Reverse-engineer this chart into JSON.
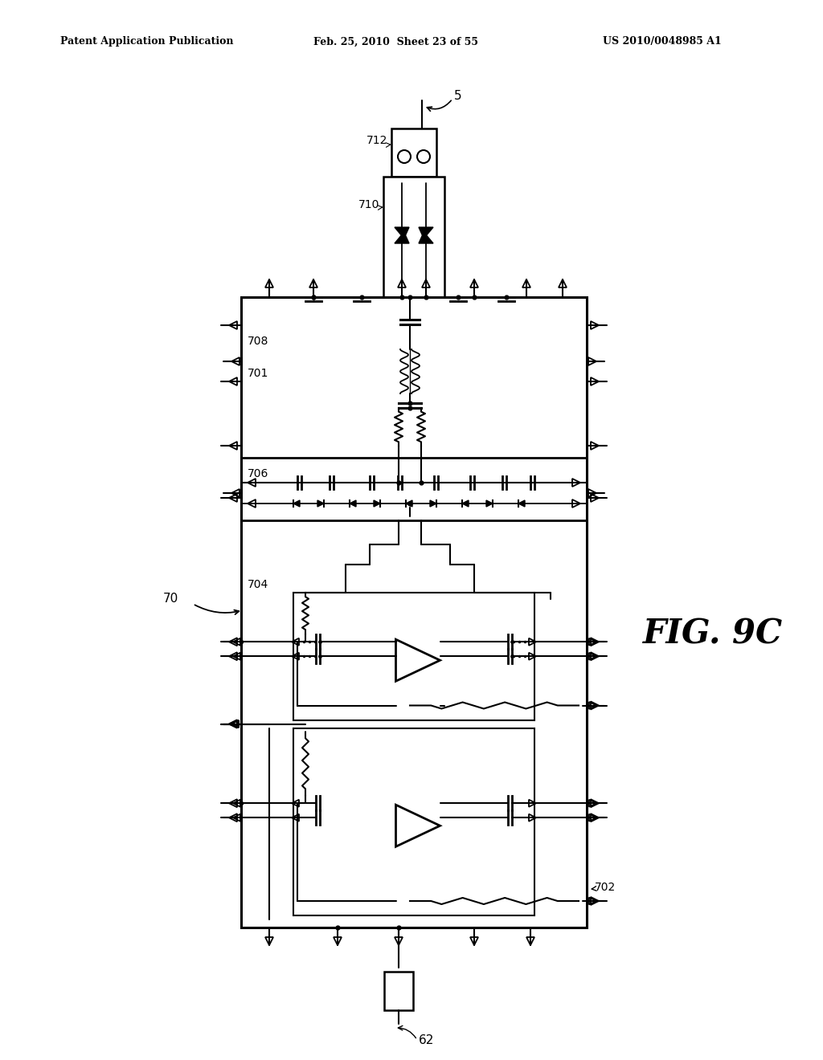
{
  "bg_color": "#ffffff",
  "title_left": "Patent Application Publication",
  "title_mid": "Feb. 25, 2010  Sheet 23 of 55",
  "title_right": "US 2010/0048985 A1",
  "fig_label": "FIG. 9C",
  "label_70": "70",
  "label_5": "5",
  "label_62": "62",
  "label_701": "701",
  "label_702": "702",
  "label_704": "704",
  "label_706": "706",
  "label_708": "708",
  "label_710": "710",
  "label_712": "712"
}
